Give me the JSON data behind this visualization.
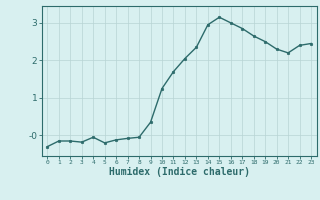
{
  "x": [
    0,
    1,
    2,
    3,
    4,
    5,
    6,
    7,
    8,
    9,
    10,
    11,
    12,
    13,
    14,
    15,
    16,
    17,
    18,
    19,
    20,
    21,
    22,
    23
  ],
  "y": [
    -0.3,
    -0.15,
    -0.15,
    -0.18,
    -0.05,
    -0.2,
    -0.12,
    -0.08,
    -0.05,
    0.35,
    1.25,
    1.7,
    2.05,
    2.35,
    2.95,
    3.15,
    3.0,
    2.85,
    2.65,
    2.5,
    2.3,
    2.2,
    2.4,
    2.45
  ],
  "line_color": "#2d6b6b",
  "marker": "o",
  "markersize": 1.8,
  "linewidth": 1.0,
  "xlabel": "Humidex (Indice chaleur)",
  "xlabel_fontsize": 7,
  "xlabel_color": "#2d6b6b",
  "yticks": [
    0,
    1,
    2,
    3
  ],
  "ytick_labels": [
    "-0",
    "1",
    "2",
    "3"
  ],
  "bg_color": "#d8f0f0",
  "grid_color": "#b8d4d4",
  "tick_color": "#2d6b6b",
  "spine_color": "#2d6b6b",
  "xlim": [
    -0.5,
    23.5
  ],
  "ylim": [
    -0.55,
    3.45
  ]
}
